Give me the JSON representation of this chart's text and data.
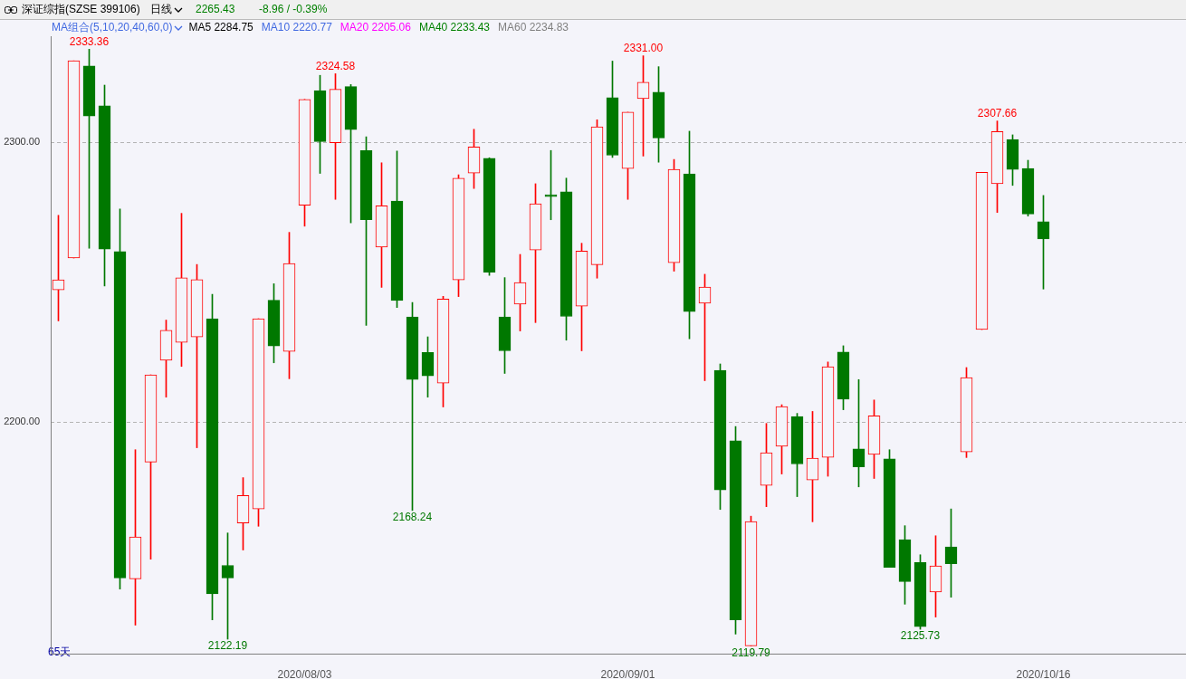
{
  "chart_data": {
    "type": "candlestick",
    "title": "深证综指(SZSE 399106)",
    "subtitle": "日线",
    "categories": [
      null,
      null,
      null,
      null,
      null,
      null,
      null,
      null,
      null,
      null,
      null,
      null,
      null,
      null,
      null,
      null,
      "2020/08/03",
      null,
      null,
      null,
      null,
      null,
      null,
      null,
      null,
      null,
      null,
      null,
      null,
      null,
      null,
      null,
      null,
      null,
      null,
      null,
      null,
      "2020/09/01",
      null,
      null,
      null,
      null,
      null,
      null,
      null,
      null,
      null,
      null,
      null,
      null,
      null,
      null,
      null,
      null,
      null,
      null,
      null,
      null,
      null,
      null,
      null,
      null,
      null,
      null,
      "2020/10/16"
    ],
    "ohlc": [
      [
        2247.2,
        2273.9,
        2236.1,
        2250.8
      ],
      [
        2258.6,
        2329.2,
        2258.6,
        2329.2
      ],
      [
        2327.4,
        2333.36,
        2262.1,
        2309.4
      ],
      [
        2313.1,
        2320.5,
        2248.6,
        2261.8
      ],
      [
        2260.9,
        2276.2,
        2140.1,
        2144.1
      ],
      [
        2143.8,
        2190.0,
        2127.2,
        2158.8
      ],
      [
        2185.6,
        2216.8,
        2150.8,
        2216.8
      ],
      [
        2222.0,
        2236.4,
        2208.8,
        2232.7
      ],
      [
        2228.4,
        2274.6,
        2219.8,
        2251.5
      ],
      [
        2230.4,
        2256.3,
        2190.7,
        2250.9
      ],
      [
        2236.9,
        2245.6,
        2129.1,
        2138.4
      ],
      [
        2148.6,
        2160.2,
        2122.19,
        2144.1
      ],
      [
        2163.8,
        2180.0,
        2154.1,
        2173.6
      ],
      [
        2168.8,
        2236.9,
        2162.6,
        2236.9
      ],
      [
        2243.5,
        2249.4,
        2221.1,
        2227.1
      ],
      [
        2225.2,
        2267.8,
        2215.4,
        2256.6
      ],
      [
        2277.5,
        2315.4,
        2270.0,
        2315.4
      ],
      [
        2318.5,
        2324.0,
        2288.9,
        2300.3
      ],
      [
        2299.9,
        2324.58,
        2279.6,
        2319.0
      ],
      [
        2320.0,
        2320.7,
        2271.2,
        2304.6
      ],
      [
        2297.1,
        2302.0,
        2234.5,
        2272.3
      ],
      [
        2262.5,
        2292.7,
        2248.1,
        2277.3
      ],
      [
        2279.0,
        2296.9,
        2240.9,
        2243.4
      ],
      [
        2237.5,
        2242.7,
        2168.24,
        2215.1
      ],
      [
        2224.8,
        2230.4,
        2208.8,
        2216.4
      ],
      [
        2213.8,
        2244.9,
        2205.3,
        2243.9
      ],
      [
        2250.8,
        2288.4,
        2244.8,
        2287.2
      ],
      [
        2289.0,
        2304.7,
        2283.5,
        2298.4
      ],
      [
        2294.3,
        2294.5,
        2252.4,
        2253.5
      ],
      [
        2237.5,
        2251.6,
        2217.3,
        2225.4
      ],
      [
        2242.1,
        2259.9,
        2232.5,
        2249.8
      ],
      [
        2261.5,
        2285.2,
        2235.5,
        2278.0
      ],
      [
        2281.3,
        2297.1,
        2272.3,
        2280.6
      ],
      [
        2282.3,
        2287.2,
        2229.2,
        2237.7
      ],
      [
        2241.4,
        2263.9,
        2225.4,
        2261.1
      ],
      [
        2256.2,
        2308.1,
        2251.4,
        2305.6
      ],
      [
        2316.0,
        2329.1,
        2294.6,
        2295.4
      ],
      [
        2290.6,
        2310.8,
        2279.6,
        2310.8
      ],
      [
        2315.7,
        2331.0,
        2295.1,
        2321.5
      ],
      [
        2318.0,
        2327.1,
        2292.9,
        2301.6
      ],
      [
        2256.9,
        2293.9,
        2253.9,
        2290.3
      ],
      [
        2288.7,
        2304.0,
        2229.7,
        2239.4
      ],
      [
        2242.4,
        2252.8,
        2214.7,
        2248.2
      ],
      [
        2218.4,
        2220.7,
        2168.6,
        2175.6
      ],
      [
        2193.2,
        2198.3,
        2124.0,
        2129.1
      ],
      [
        2119.79,
        2166.2,
        2119.79,
        2164.3
      ],
      [
        2177.2,
        2199.4,
        2169.6,
        2188.9
      ],
      [
        2191.2,
        2206.1,
        2181.3,
        2205.4
      ],
      [
        2201.9,
        2203.0,
        2173.2,
        2184.9
      ],
      [
        2179.2,
        2203.7,
        2164.2,
        2187.0
      ],
      [
        2187.3,
        2221.4,
        2180.5,
        2219.7
      ],
      [
        2225.0,
        2227.2,
        2204.3,
        2208.1
      ],
      [
        2190.3,
        2215.1,
        2176.7,
        2183.9
      ],
      [
        2188.3,
        2207.8,
        2179.7,
        2202.1
      ],
      [
        2186.7,
        2190.0,
        2147.9,
        2147.9
      ],
      [
        2157.8,
        2162.8,
        2134.7,
        2142.8
      ],
      [
        2149.6,
        2152.4,
        2125.73,
        2126.7
      ],
      [
        2139.1,
        2159.2,
        2130.1,
        2148.4
      ],
      [
        2155.2,
        2168.8,
        2137.2,
        2149.2
      ],
      [
        2189.2,
        2219.4,
        2187.2,
        2215.8
      ],
      [
        2233.0,
        2289.3,
        2233.0,
        2289.3
      ],
      [
        2285.2,
        2307.66,
        2274.9,
        2303.9
      ],
      [
        2301.0,
        2302.7,
        2284.6,
        2290.3
      ],
      [
        2290.7,
        2293.6,
        2273.6,
        2274.39
      ],
      [
        2271.6,
        2281.0,
        2247.5,
        2265.43
      ]
    ],
    "ylim": [
      2117,
      2338
    ],
    "yticks": [
      {
        "value": 2200,
        "label": "2200.00"
      },
      {
        "value": 2300,
        "label": "2300.00"
      }
    ],
    "grid": "y",
    "legend": false,
    "annotations": [
      "2265.43",
      "-8.96 / -0.39%",
      "MA组合(5,10,20,40,60,0)",
      "MA5 2284.75",
      "MA10 2220.77",
      "MA20 2205.06",
      "MA40 2233.43",
      "MA60 2234.83",
      "65天",
      {
        "text": "2333.36",
        "y": 2333.36
      },
      {
        "text": "2324.58",
        "y": 2324.58
      },
      {
        "text": "2331.00",
        "y": 2331.0
      },
      {
        "text": "2307.66",
        "y": 2307.66
      },
      {
        "text": "2122.19",
        "y": 2122.19
      },
      {
        "text": "2168.24",
        "y": 2168.24
      },
      {
        "text": "2119.79",
        "y": 2119.79
      },
      {
        "text": "2125.73",
        "y": 2125.73
      }
    ]
  }
}
